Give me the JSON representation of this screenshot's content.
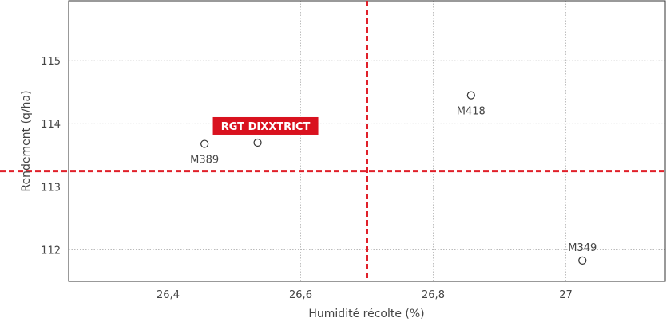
{
  "chart_data": {
    "type": "scatter",
    "xlabel": "Humidité récolte (%)",
    "ylabel": "Rendement (q/ha)",
    "xlim": [
      26.25,
      27.15
    ],
    "ylim": [
      111.5,
      115.95
    ],
    "xticks": [
      {
        "value": 26.4,
        "label": "26,4"
      },
      {
        "value": 26.6,
        "label": "26,6"
      },
      {
        "value": 26.8,
        "label": "26,8"
      },
      {
        "value": 27.0,
        "label": "27"
      }
    ],
    "yticks": [
      {
        "value": 112,
        "label": "112"
      },
      {
        "value": 113,
        "label": "113"
      },
      {
        "value": 114,
        "label": "114"
      },
      {
        "value": 115,
        "label": "115"
      }
    ],
    "grid": true,
    "points": [
      {
        "name": "M389",
        "x": 26.455,
        "y": 113.68,
        "label_position": "below",
        "highlight": false
      },
      {
        "name": "RGT DIXXTRICT",
        "x": 26.535,
        "y": 113.7,
        "label_position": "above",
        "highlight": true
      },
      {
        "name": "M418",
        "x": 26.857,
        "y": 114.45,
        "label_position": "below",
        "highlight": false
      },
      {
        "name": "M349",
        "x": 27.025,
        "y": 111.83,
        "label_position": "above",
        "highlight": false
      }
    ],
    "reference_lines": {
      "x": 26.7,
      "y": 113.25
    },
    "colors": {
      "reference": "#e0202a",
      "highlight_bg": "#d9121f",
      "grid": "#b0b0b0",
      "marker": "#333333"
    }
  }
}
